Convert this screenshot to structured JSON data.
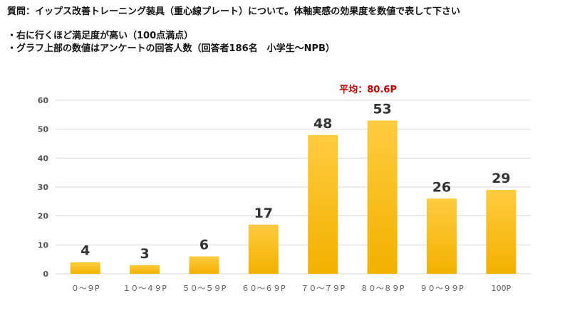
{
  "question": "質問：イップス改善トレーニング装具（重心線プレート）について。体軸実感の効果度を数値で表して下さい",
  "notes": [
    "・右に行くほど満足度が高い（100点満点）",
    "・グラフ上部の数値はアンケートの回答人数（回答者186名　小学生〜NPB）"
  ],
  "average_label": "平均：80.6P",
  "colors": {
    "bar_top": "#ffcc40",
    "bar_bottom": "#f2b100",
    "average": "#c00000",
    "grid": "#d9d9d9",
    "axis_text": "#555555"
  },
  "chart_data": {
    "type": "bar",
    "categories": [
      "０〜９P",
      "１０〜４９P",
      "５０〜５９P",
      "６０〜６９P",
      "７０〜７９P",
      "８０〜８９P",
      "９０〜９９P",
      "100P"
    ],
    "values": [
      4,
      3,
      6,
      17,
      48,
      53,
      26,
      29
    ],
    "ylim": [
      0,
      60
    ],
    "yticks": [
      0,
      10,
      20,
      30,
      40,
      50,
      60
    ],
    "grid": true,
    "data_labels": true
  }
}
